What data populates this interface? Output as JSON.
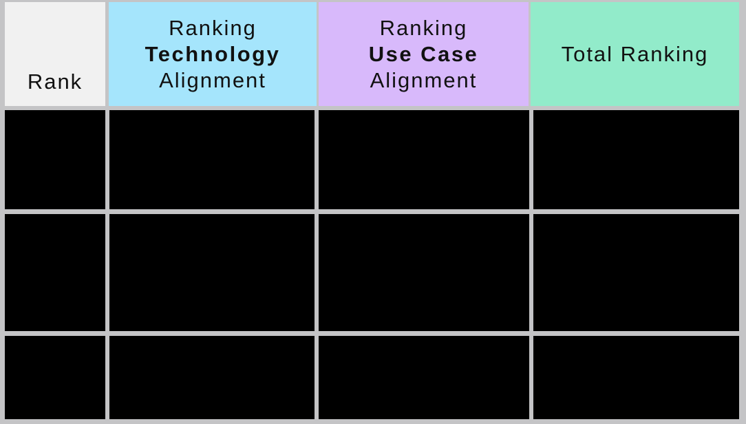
{
  "table": {
    "headers": [
      {
        "lines": [
          "Rank"
        ],
        "bold_line": null
      },
      {
        "lines": [
          "Ranking",
          "Technology",
          "Alignment"
        ],
        "bold_line": 1
      },
      {
        "lines": [
          "Ranking",
          "Use Case",
          "Alignment"
        ],
        "bold_line": 1
      },
      {
        "lines": [
          "Total Ranking"
        ],
        "bold_line": null
      }
    ],
    "rows": [
      [
        "",
        "",
        "",
        ""
      ],
      [
        "",
        "",
        "",
        ""
      ],
      [
        "",
        "",
        "",
        ""
      ]
    ],
    "colors": {
      "rank_header": "#f1f1f1",
      "technology_header": "#a5e5fc",
      "use_case_header": "#d8b9fb",
      "total_header": "#92ebca",
      "body_cell": "#000000",
      "grid": "#c4c4c6"
    }
  }
}
